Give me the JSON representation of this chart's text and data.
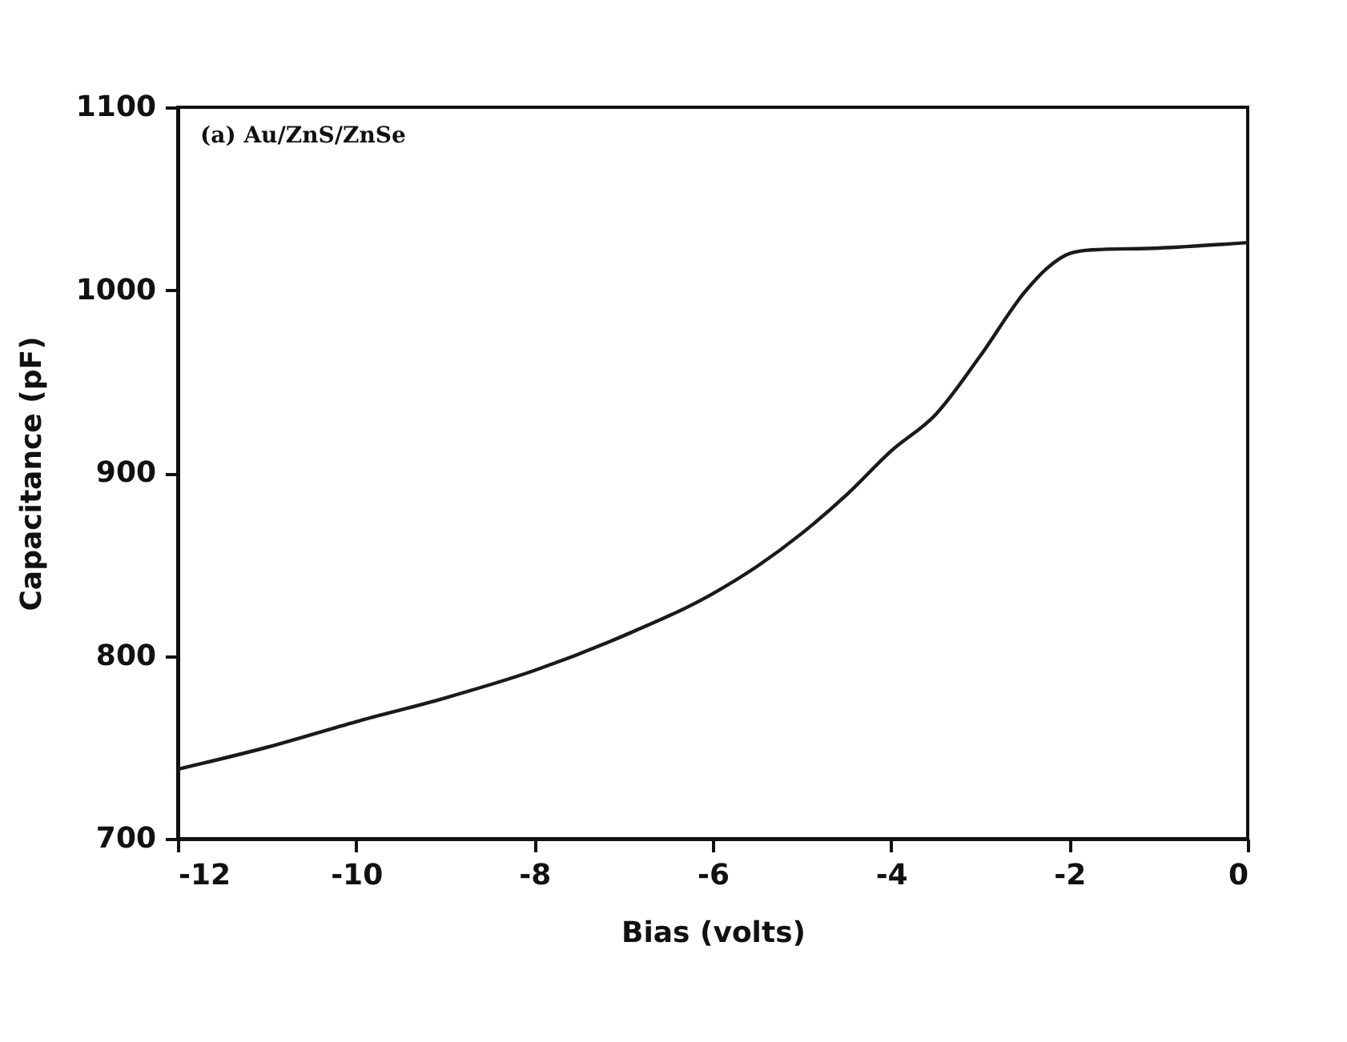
{
  "chart_data": {
    "type": "line",
    "xlabel": "Bias (volts)",
    "ylabel": "Capacitance (pF)",
    "annotations": [
      "(a) Au/ZnS/ZnSe"
    ],
    "x": [
      -12,
      -11,
      -10,
      -9,
      -8,
      -7,
      -6,
      -5.5,
      -5,
      -4.5,
      -4,
      -3.5,
      -3,
      -2.5,
      -2.25,
      -2,
      -1.75,
      -1,
      0
    ],
    "series": [
      {
        "color": "#1a1a1a",
        "values": [
          738,
          750,
          764,
          777,
          792,
          811,
          834,
          849,
          867,
          888,
          912,
          932,
          964,
          999,
          1012,
          1020,
          1022,
          1023,
          1026
        ]
      }
    ],
    "xlim": [
      -12,
      0
    ],
    "xticks": [
      -12,
      -10,
      -8,
      -6,
      -4,
      -2,
      0
    ],
    "ylim": [
      700,
      1100
    ],
    "yticks": [
      700,
      800,
      900,
      1000,
      1100
    ],
    "grid": false,
    "marker": "none",
    "line_style": "solid"
  }
}
